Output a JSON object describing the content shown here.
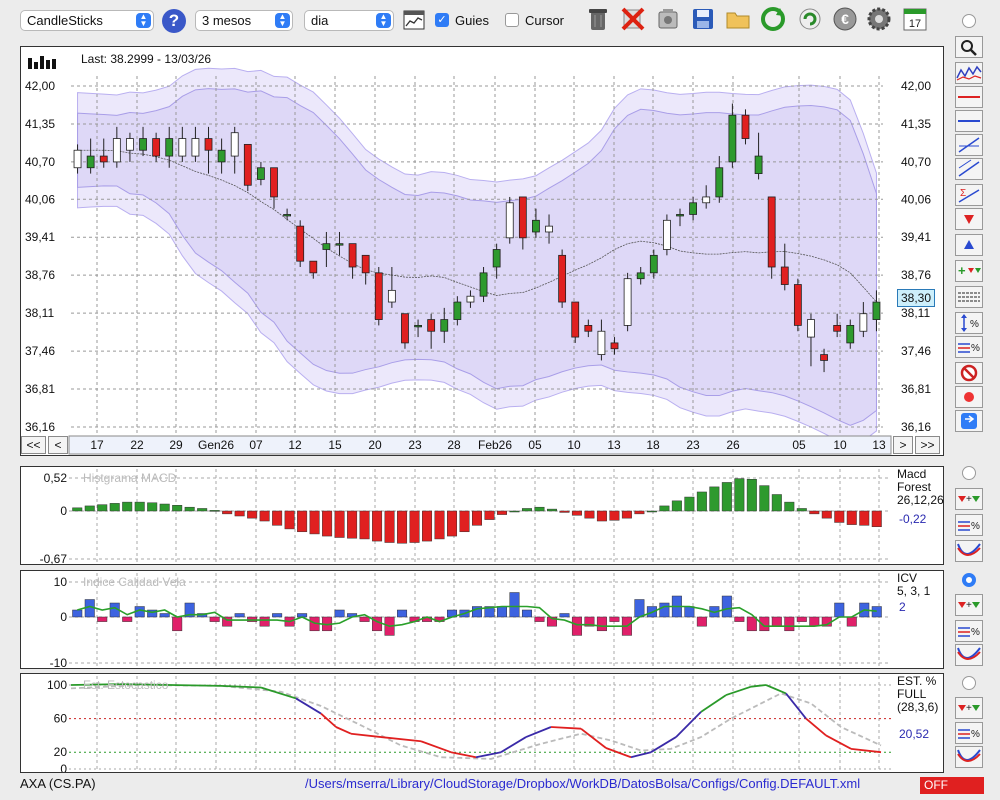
{
  "toolbar": {
    "symbol_select": "CandleSticks",
    "period_select": "3 mesos",
    "interval_select": "dia",
    "guides_label": "Guies",
    "guides_checked": true,
    "cursor_label": "Cursor",
    "cursor_checked": false,
    "calendar_day": "17",
    "icons": [
      "help-icon",
      "chart-settings-icon",
      "trash-icon",
      "delete-icon",
      "camera-icon",
      "save-icon",
      "folder-icon",
      "refresh-icon",
      "reload-icon",
      "euro-icon",
      "gear-icon",
      "calendar-icon"
    ]
  },
  "main_chart": {
    "last_label": "Last: 38.2999 - 13/03/26",
    "y_ticks": [
      "42,00",
      "41,35",
      "40,70",
      "40,06",
      "39,41",
      "38,76",
      "38,11",
      "37,46",
      "36,81",
      "36,16"
    ],
    "current_price": "38,30",
    "x_labels": [
      "17",
      "22",
      "29",
      "Gen26",
      "07",
      "12",
      "15",
      "20",
      "23",
      "28",
      "Feb26",
      "05",
      "10",
      "13",
      "18",
      "23",
      "26",
      "05",
      "10",
      "13"
    ],
    "nav": {
      "first": "<<",
      "prev": "<",
      "next": ">",
      "last": ">>"
    }
  },
  "macd_panel": {
    "title": "Histgrama MACD",
    "name": "Macd",
    "subname": "Forest",
    "params": "26,12,26",
    "value": "-0,22",
    "y_ticks": [
      "0,52",
      "0",
      "-0,67"
    ]
  },
  "icv_panel": {
    "title": "Indice Calidad Vela",
    "name": "ICV",
    "params": "5, 3, 1",
    "value": "2",
    "y_ticks": [
      "10",
      "0",
      "-10"
    ]
  },
  "stoch_panel": {
    "title": "Est. Estocastico",
    "name": "EST. %",
    "subname": "FULL",
    "params": "(28,3,6)",
    "value": "20,52",
    "y_ticks": [
      "100",
      "60",
      "20",
      "0"
    ]
  },
  "status": {
    "ticker": "AXA (CS.PA)",
    "path": "/Users/mserra/Library/CloudStorage/Dropbox/WorkDB/DatosBolsa/Configs/Config.DEFAULT.xml",
    "state": "OFF"
  },
  "colors": {
    "bull": "#2e9a2e",
    "bear": "#e02020",
    "band": "#d9d3f5",
    "blue_bar": "#3d63e0",
    "pink_bar": "#e0206a",
    "accent": "#2f7cf6"
  },
  "chart_data": [
    {
      "type": "candlestick",
      "ylim": [
        36.16,
        42.0
      ],
      "x": [
        "17",
        "22",
        "29",
        "Gen26",
        "07",
        "12",
        "15",
        "20",
        "23",
        "28",
        "Feb26",
        "05",
        "10",
        "13",
        "18",
        "23",
        "26",
        "05",
        "10",
        "13"
      ],
      "candles": [
        [
          40.9,
          40.6,
          41.0,
          40.5
        ],
        [
          40.6,
          40.8,
          41.1,
          40.5
        ],
        [
          40.8,
          40.7,
          41.1,
          40.6
        ],
        [
          40.7,
          41.1,
          41.3,
          40.6
        ],
        [
          41.1,
          40.9,
          41.2,
          40.7
        ],
        [
          40.9,
          41.1,
          41.3,
          40.8
        ],
        [
          41.1,
          40.8,
          41.2,
          40.7
        ],
        [
          40.8,
          41.1,
          41.3,
          40.6
        ],
        [
          41.1,
          40.8,
          41.3,
          40.7
        ],
        [
          40.8,
          41.1,
          41.3,
          40.7
        ],
        [
          41.1,
          40.9,
          41.3,
          40.5
        ],
        [
          40.7,
          40.9,
          41.1,
          40.5
        ],
        [
          41.2,
          40.8,
          41.3,
          40.5
        ],
        [
          41.0,
          40.3,
          41.0,
          40.2
        ],
        [
          40.4,
          40.6,
          40.7,
          40.3
        ],
        [
          40.6,
          40.1,
          40.6,
          39.9
        ],
        [
          39.8,
          39.8,
          39.9,
          39.7
        ],
        [
          39.6,
          39.0,
          39.7,
          38.9
        ],
        [
          39.0,
          38.8,
          39.0,
          38.7
        ],
        [
          39.2,
          39.3,
          39.5,
          38.9
        ],
        [
          39.3,
          39.3,
          39.5,
          39.1
        ],
        [
          39.3,
          38.9,
          39.3,
          38.7
        ],
        [
          39.1,
          38.8,
          39.1,
          38.6
        ],
        [
          38.8,
          38.0,
          38.9,
          37.9
        ],
        [
          38.3,
          38.5,
          38.9,
          38.2
        ],
        [
          38.1,
          37.6,
          38.1,
          37.5
        ],
        [
          37.9,
          37.9,
          38.0,
          37.7
        ],
        [
          38.0,
          37.8,
          38.1,
          37.5
        ],
        [
          37.8,
          38.0,
          38.2,
          37.6
        ],
        [
          38.0,
          38.3,
          38.4,
          37.9
        ],
        [
          38.3,
          38.4,
          38.5,
          38.2
        ],
        [
          38.4,
          38.8,
          38.9,
          38.3
        ],
        [
          38.9,
          39.2,
          39.3,
          38.7
        ],
        [
          39.4,
          40.0,
          40.1,
          39.3
        ],
        [
          40.1,
          39.4,
          40.1,
          39.2
        ],
        [
          39.5,
          39.7,
          39.9,
          39.4
        ],
        [
          39.6,
          39.5,
          39.8,
          39.3
        ],
        [
          39.1,
          38.3,
          39.2,
          38.2
        ],
        [
          38.3,
          37.7,
          38.3,
          37.6
        ],
        [
          37.9,
          37.8,
          38.0,
          37.7
        ],
        [
          37.8,
          37.4,
          38.0,
          37.3
        ],
        [
          37.6,
          37.5,
          37.7,
          37.4
        ],
        [
          37.9,
          38.7,
          38.8,
          37.8
        ],
        [
          38.7,
          38.8,
          38.9,
          38.6
        ],
        [
          38.8,
          39.1,
          39.2,
          38.7
        ],
        [
          39.2,
          39.7,
          39.8,
          39.1
        ],
        [
          39.8,
          39.8,
          39.9,
          39.6
        ],
        [
          39.8,
          40.0,
          40.1,
          39.7
        ],
        [
          40.0,
          40.1,
          40.3,
          39.9
        ],
        [
          40.1,
          40.6,
          40.8,
          40.0
        ],
        [
          40.7,
          41.5,
          41.7,
          40.6
        ],
        [
          41.5,
          41.1,
          41.6,
          41.0
        ],
        [
          40.5,
          40.8,
          41.2,
          40.4
        ],
        [
          40.1,
          38.9,
          40.1,
          38.7
        ],
        [
          38.9,
          38.6,
          39.3,
          38.5
        ],
        [
          38.6,
          37.9,
          38.7,
          37.8
        ],
        [
          38.0,
          37.7,
          38.1,
          37.2
        ],
        [
          37.4,
          37.3,
          37.5,
          37.1
        ],
        [
          37.9,
          37.8,
          38.1,
          37.7
        ],
        [
          37.6,
          37.9,
          38.0,
          37.5
        ],
        [
          38.1,
          37.8,
          38.3,
          37.7
        ],
        [
          38.0,
          38.3,
          38.5,
          37.8
        ]
      ]
    },
    {
      "type": "bar",
      "title": "Histgrama MACD",
      "ylim": [
        -0.67,
        0.52
      ],
      "values": [
        0.05,
        0.08,
        0.1,
        0.12,
        0.14,
        0.14,
        0.13,
        0.11,
        0.09,
        0.06,
        0.04,
        0.01,
        -0.04,
        -0.07,
        -0.1,
        -0.14,
        -0.2,
        -0.25,
        -0.29,
        -0.32,
        -0.35,
        -0.37,
        -0.38,
        -0.39,
        -0.42,
        -0.44,
        -0.45,
        -0.44,
        -0.42,
        -0.39,
        -0.35,
        -0.29,
        -0.2,
        -0.12,
        -0.05,
        0.0,
        0.04,
        0.06,
        0.03,
        -0.02,
        -0.06,
        -0.1,
        -0.14,
        -0.13,
        -0.1,
        -0.04,
        0.0,
        0.08,
        0.16,
        0.22,
        0.3,
        0.38,
        0.45,
        0.51,
        0.5,
        0.4,
        0.26,
        0.14,
        0.04,
        -0.04,
        -0.1,
        -0.16,
        -0.19,
        -0.2,
        -0.22
      ]
    },
    {
      "type": "bar",
      "title": "Indice Calidad Vela",
      "ylim": [
        -10,
        10
      ],
      "values": [
        2,
        5,
        -1,
        4,
        -1,
        3,
        2,
        1,
        -3,
        4,
        1,
        -1,
        -2,
        1,
        -1,
        -2,
        1,
        -2,
        1,
        -3,
        -3,
        2,
        1,
        -1,
        -3,
        -4,
        2,
        -1,
        -1,
        -1,
        2,
        2,
        3,
        3,
        3,
        7,
        2,
        -1,
        -2,
        1,
        -4,
        -2,
        -3,
        -1,
        -4,
        5,
        3,
        4,
        6,
        3,
        -2,
        3,
        6,
        -1,
        -3,
        -3,
        -2,
        -3,
        -1,
        -2,
        -2,
        4,
        -2,
        4,
        3
      ]
    }
  ]
}
